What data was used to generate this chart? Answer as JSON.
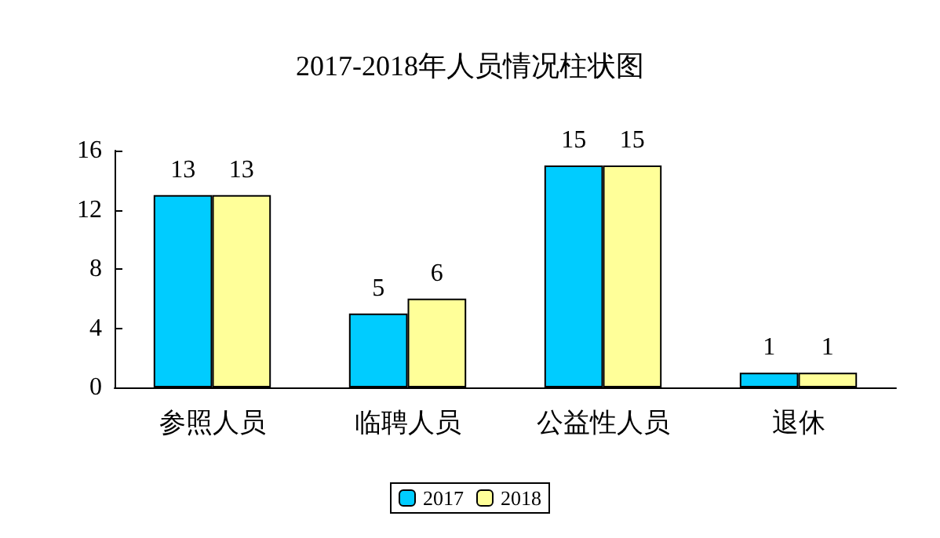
{
  "chart_data": {
    "type": "bar",
    "title": "2017-2018年人员情况柱状图",
    "categories": [
      "参照人员",
      "临聘人员",
      "公益性人员",
      "退休"
    ],
    "series": [
      {
        "name": "2017",
        "color": "#00ccff",
        "values": [
          13,
          5,
          15,
          1
        ]
      },
      {
        "name": "2018",
        "color": "#ffff99",
        "values": [
          13,
          6,
          15,
          1
        ]
      }
    ],
    "ylim": [
      0,
      16
    ],
    "yticks": [
      0,
      4,
      8,
      12,
      16
    ],
    "grid": false,
    "legend": "bottom",
    "data_labels": true
  }
}
